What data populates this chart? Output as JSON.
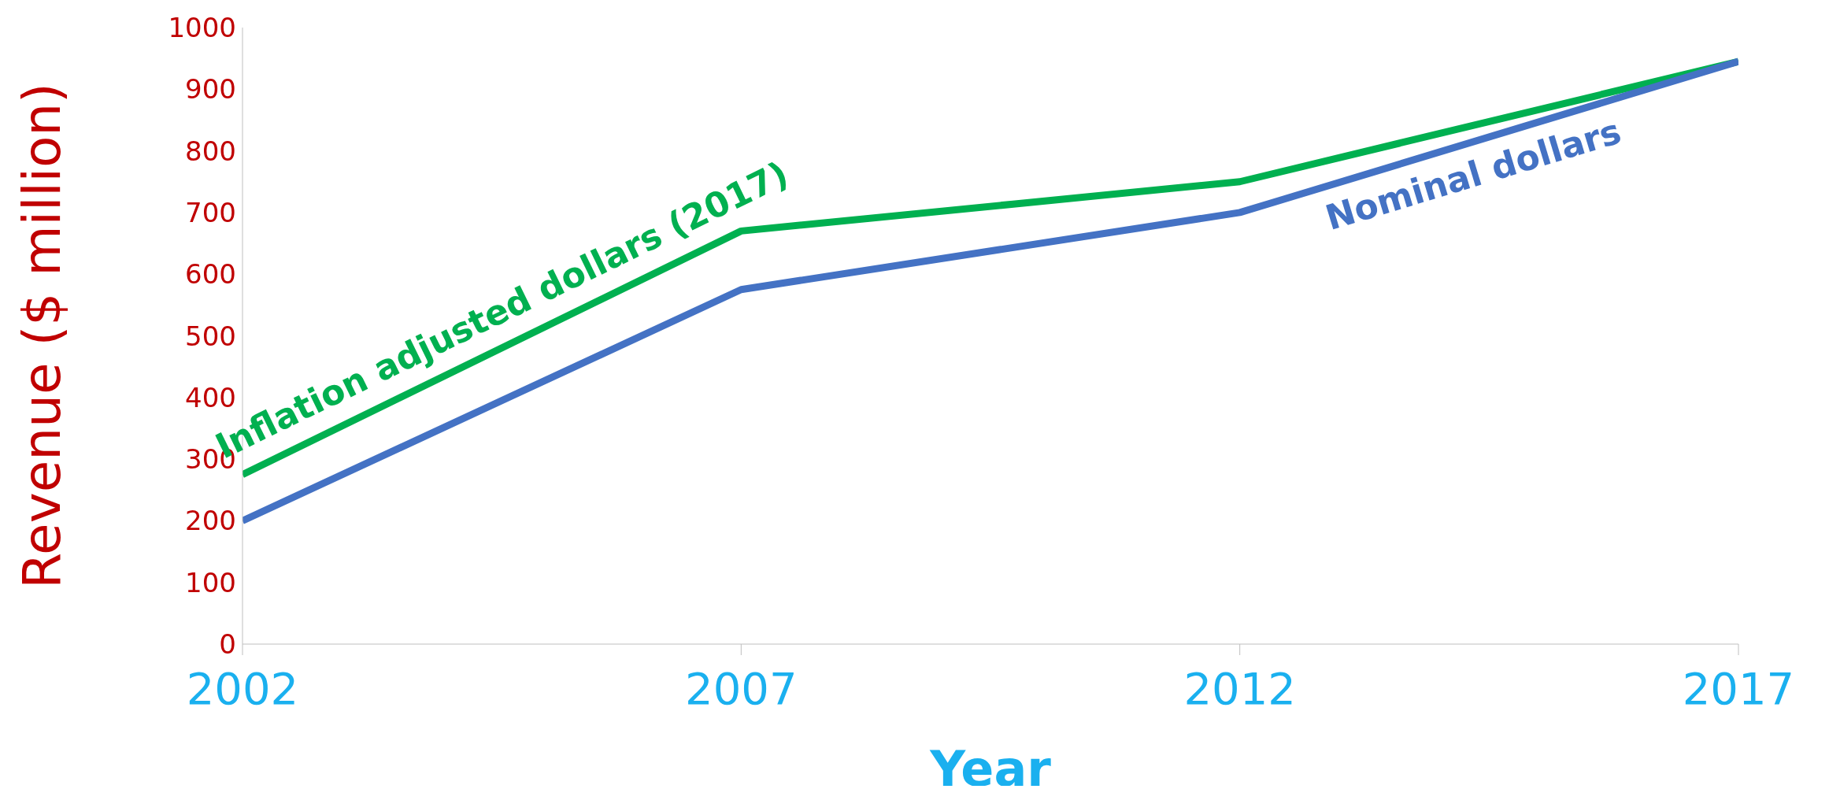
{
  "chart_data": {
    "type": "line",
    "xlabel": "Year",
    "ylabel": "Revenue ($ million)",
    "x": [
      2002,
      2007,
      2012,
      2017
    ],
    "series": [
      {
        "name": "Inflation adjusted dollars (2017)",
        "color": "#00b050",
        "values": [
          275,
          670,
          750,
          945
        ]
      },
      {
        "name": "Nominal dollars",
        "color": "#4472c4",
        "values": [
          200,
          575,
          700,
          945
        ]
      }
    ],
    "xlim": [
      2002,
      2017
    ],
    "xticks": [
      2002,
      2007,
      2012,
      2017
    ],
    "ylim": [
      0,
      1000
    ],
    "yticks": [
      0,
      100,
      200,
      300,
      400,
      500,
      600,
      700,
      800,
      900,
      1000
    ],
    "marker": "none",
    "line_style": "solid"
  }
}
